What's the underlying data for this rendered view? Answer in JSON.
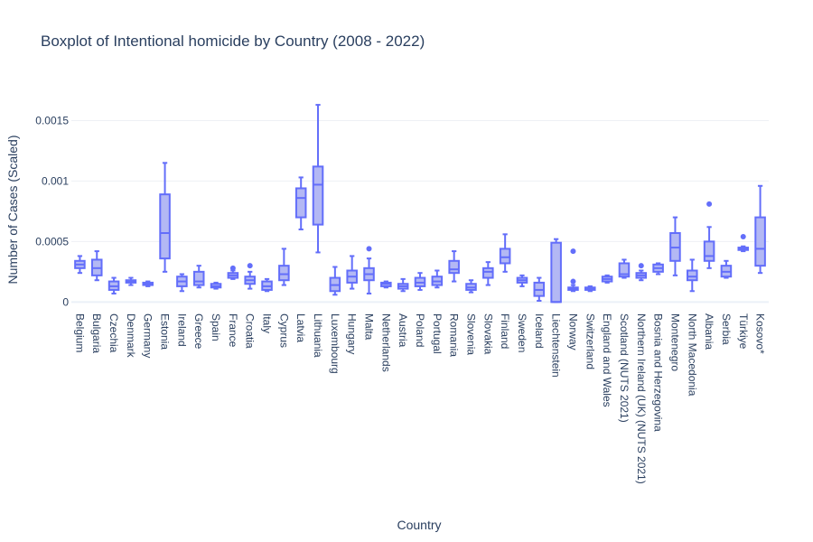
{
  "chart_data": {
    "type": "box",
    "title": "Boxplot of Intentional homicide by Country (2008 - 2022)",
    "xlabel": "Country",
    "ylabel": "Number of Cases (Scaled)",
    "ylim": [
      -2e-05,
      0.00175
    ],
    "yticks": [
      {
        "value": 0,
        "label": "0"
      },
      {
        "value": 0.0005,
        "label": "0.0005"
      },
      {
        "value": 0.001,
        "label": "0.001"
      },
      {
        "value": 0.0015,
        "label": "0.0015"
      }
    ],
    "grid": true,
    "legend": "none",
    "colors": {
      "line": "#636efa",
      "fill": "#b3b8f4",
      "grid": "#eef0f5",
      "text": "#2a3f5f"
    },
    "categories": [
      "Belgium",
      "Bulgaria",
      "Czechia",
      "Denmark",
      "Germany",
      "Estonia",
      "Ireland",
      "Greece",
      "Spain",
      "France",
      "Croatia",
      "Italy",
      "Cyprus",
      "Latvia",
      "Lithuania",
      "Luxembourg",
      "Hungary",
      "Malta",
      "Netherlands",
      "Austria",
      "Poland",
      "Portugal",
      "Romania",
      "Slovenia",
      "Slovakia",
      "Finland",
      "Sweden",
      "Iceland",
      "Liechtenstein",
      "Norway",
      "Switzerland",
      "England and Wales",
      "Scotland (NUTS 2021)",
      "Northern Ireland (UK) (NUTS 2021)",
      "Bosnia and Herzegovina",
      "Montenegro",
      "North Macedonia",
      "Albania",
      "Serbia",
      "Türkiye",
      "Kosovo*"
    ],
    "boxes": [
      {
        "min": 0.00024,
        "q1": 0.00028,
        "median": 0.00031,
        "q3": 0.00034,
        "max": 0.00038,
        "outliers": []
      },
      {
        "min": 0.00018,
        "q1": 0.00022,
        "median": 0.00028,
        "q3": 0.00035,
        "max": 0.00042,
        "outliers": []
      },
      {
        "min": 7e-05,
        "q1": 0.0001,
        "median": 0.00013,
        "q3": 0.00017,
        "max": 0.0002,
        "outliers": []
      },
      {
        "min": 0.00014,
        "q1": 0.00016,
        "median": 0.00017,
        "q3": 0.00018,
        "max": 0.0002,
        "outliers": []
      },
      {
        "min": 0.00013,
        "q1": 0.00014,
        "median": 0.00015,
        "q3": 0.00016,
        "max": 0.00017,
        "outliers": []
      },
      {
        "min": 0.00025,
        "q1": 0.00036,
        "median": 0.00057,
        "q3": 0.00089,
        "max": 0.00115,
        "outliers": []
      },
      {
        "min": 9e-05,
        "q1": 0.00013,
        "median": 0.00017,
        "q3": 0.00021,
        "max": 0.00023,
        "outliers": []
      },
      {
        "min": 0.00012,
        "q1": 0.00014,
        "median": 0.00017,
        "q3": 0.00025,
        "max": 0.0003,
        "outliers": []
      },
      {
        "min": 0.00011,
        "q1": 0.00012,
        "median": 0.00013,
        "q3": 0.00015,
        "max": 0.00016,
        "outliers": []
      },
      {
        "min": 0.00019,
        "q1": 0.0002,
        "median": 0.00022,
        "q3": 0.00024,
        "max": 0.00026,
        "outliers": [
          0.00028
        ]
      },
      {
        "min": 0.00011,
        "q1": 0.00015,
        "median": 0.00018,
        "q3": 0.00021,
        "max": 0.00025,
        "outliers": [
          0.0003
        ]
      },
      {
        "min": 9e-05,
        "q1": 0.0001,
        "median": 0.00013,
        "q3": 0.00017,
        "max": 0.00019,
        "outliers": []
      },
      {
        "min": 0.00014,
        "q1": 0.00018,
        "median": 0.00023,
        "q3": 0.0003,
        "max": 0.00044,
        "outliers": []
      },
      {
        "min": 0.0006,
        "q1": 0.0007,
        "median": 0.00086,
        "q3": 0.00094,
        "max": 0.00103,
        "outliers": []
      },
      {
        "min": 0.00041,
        "q1": 0.00064,
        "median": 0.00097,
        "q3": 0.00112,
        "max": 0.00163,
        "outliers": []
      },
      {
        "min": 6e-05,
        "q1": 9e-05,
        "median": 0.00014,
        "q3": 0.0002,
        "max": 0.00029,
        "outliers": []
      },
      {
        "min": 0.00011,
        "q1": 0.00016,
        "median": 0.00021,
        "q3": 0.00026,
        "max": 0.00038,
        "outliers": []
      },
      {
        "min": 7e-05,
        "q1": 0.00018,
        "median": 0.00023,
        "q3": 0.00028,
        "max": 0.00036,
        "outliers": [
          0.00044
        ]
      },
      {
        "min": 0.00012,
        "q1": 0.00013,
        "median": 0.00015,
        "q3": 0.00016,
        "max": 0.00017,
        "outliers": []
      },
      {
        "min": 9e-05,
        "q1": 0.00011,
        "median": 0.00013,
        "q3": 0.00015,
        "max": 0.00019,
        "outliers": []
      },
      {
        "min": 0.0001,
        "q1": 0.00013,
        "median": 0.00016,
        "q3": 0.0002,
        "max": 0.00024,
        "outliers": []
      },
      {
        "min": 0.00012,
        "q1": 0.00014,
        "median": 0.00017,
        "q3": 0.00021,
        "max": 0.00026,
        "outliers": []
      },
      {
        "min": 0.00017,
        "q1": 0.00024,
        "median": 0.00027,
        "q3": 0.00034,
        "max": 0.00042,
        "outliers": []
      },
      {
        "min": 8e-05,
        "q1": 0.0001,
        "median": 0.00012,
        "q3": 0.00015,
        "max": 0.00018,
        "outliers": []
      },
      {
        "min": 0.00014,
        "q1": 0.0002,
        "median": 0.00025,
        "q3": 0.00028,
        "max": 0.00033,
        "outliers": []
      },
      {
        "min": 0.00025,
        "q1": 0.00032,
        "median": 0.00037,
        "q3": 0.00044,
        "max": 0.00056,
        "outliers": []
      },
      {
        "min": 0.00013,
        "q1": 0.00016,
        "median": 0.00018,
        "q3": 0.0002,
        "max": 0.00022,
        "outliers": []
      },
      {
        "min": 1e-05,
        "q1": 5e-05,
        "median": 0.0001,
        "q3": 0.00016,
        "max": 0.0002,
        "outliers": []
      },
      {
        "min": 0.0,
        "q1": 0.0,
        "median": 0.0,
        "q3": 0.00049,
        "max": 0.00052,
        "outliers": []
      },
      {
        "min": 9e-05,
        "q1": 0.0001,
        "median": 0.00011,
        "q3": 0.00012,
        "max": 0.00014,
        "outliers": [
          0.00017,
          0.00042
        ]
      },
      {
        "min": 9e-05,
        "q1": 0.0001,
        "median": 0.00011,
        "q3": 0.00012,
        "max": 0.00013,
        "outliers": []
      },
      {
        "min": 0.00016,
        "q1": 0.00017,
        "median": 0.00019,
        "q3": 0.00021,
        "max": 0.00022,
        "outliers": []
      },
      {
        "min": 0.0002,
        "q1": 0.00021,
        "median": 0.00023,
        "q3": 0.00032,
        "max": 0.00035,
        "outliers": []
      },
      {
        "min": 0.00018,
        "q1": 0.0002,
        "median": 0.00022,
        "q3": 0.00024,
        "max": 0.00026,
        "outliers": [
          0.0003
        ]
      },
      {
        "min": 0.00023,
        "q1": 0.00025,
        "median": 0.00028,
        "q3": 0.00031,
        "max": 0.00032,
        "outliers": []
      },
      {
        "min": 0.00022,
        "q1": 0.00034,
        "median": 0.00045,
        "q3": 0.00057,
        "max": 0.0007,
        "outliers": []
      },
      {
        "min": 9e-05,
        "q1": 0.00018,
        "median": 0.00021,
        "q3": 0.00026,
        "max": 0.00035,
        "outliers": []
      },
      {
        "min": 0.00028,
        "q1": 0.00034,
        "median": 0.00038,
        "q3": 0.0005,
        "max": 0.00062,
        "outliers": [
          0.00081
        ]
      },
      {
        "min": 0.0002,
        "q1": 0.00021,
        "median": 0.00025,
        "q3": 0.0003,
        "max": 0.00034,
        "outliers": []
      },
      {
        "min": 0.00042,
        "q1": 0.00043,
        "median": 0.00044,
        "q3": 0.00045,
        "max": 0.00046,
        "outliers": [
          0.00054
        ]
      },
      {
        "min": 0.00024,
        "q1": 0.0003,
        "median": 0.00044,
        "q3": 0.0007,
        "max": 0.00096,
        "outliers": []
      }
    ]
  }
}
